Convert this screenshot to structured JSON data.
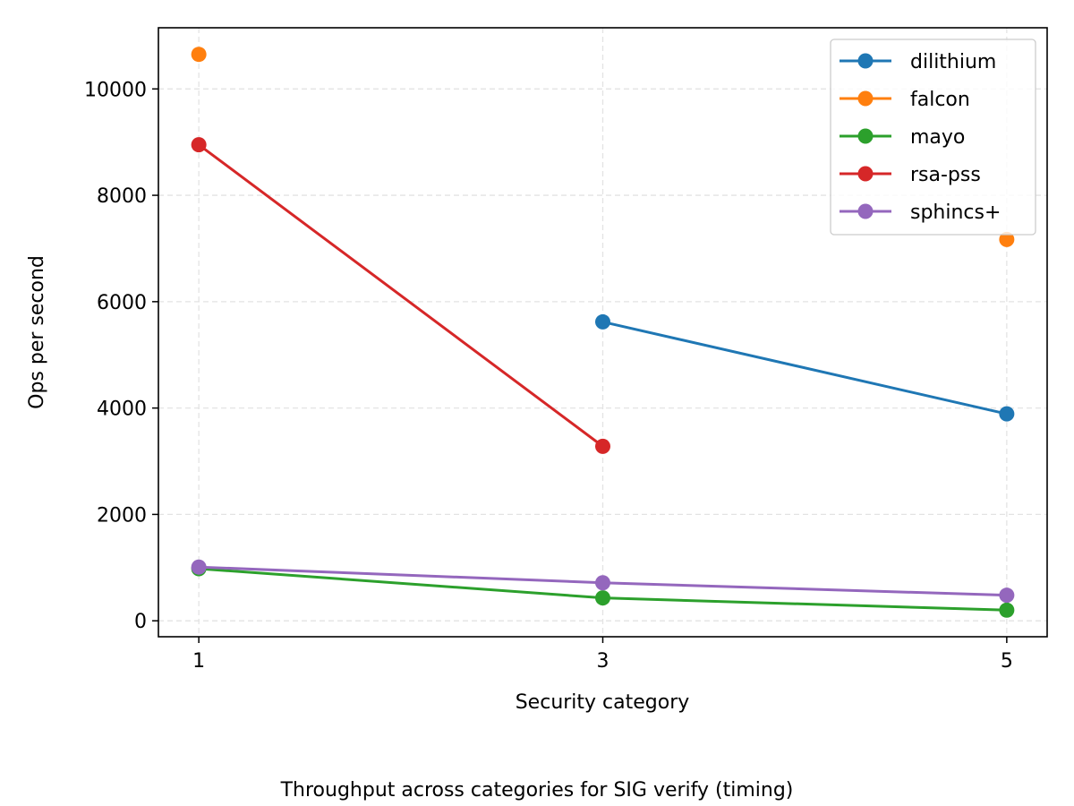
{
  "chart_data": {
    "type": "line",
    "title": "",
    "caption": "Throughput across categories for SIG verify (timing)",
    "xlabel": "Security category",
    "ylabel": "Ops per second",
    "x": [
      1,
      3,
      5
    ],
    "x_ticks": [
      "1",
      "3",
      "5"
    ],
    "y_ticks": [
      "0",
      "2000",
      "4000",
      "6000",
      "8000",
      "10000"
    ],
    "xlim": [
      0.8,
      5.2
    ],
    "ylim": [
      -300,
      11150
    ],
    "grid": true,
    "legend_position": "top-right",
    "series": [
      {
        "name": "dilithium",
        "color": "#1f77b4",
        "values": [
          null,
          5620,
          3890
        ]
      },
      {
        "name": "falcon",
        "color": "#ff7f0e",
        "values": [
          10650,
          null,
          7170
        ]
      },
      {
        "name": "mayo",
        "color": "#2ca02c",
        "values": [
          980,
          430,
          200
        ]
      },
      {
        "name": "rsa-pss",
        "color": "#d62728",
        "values": [
          8950,
          3280,
          null
        ]
      },
      {
        "name": "sphincs+",
        "color": "#9467bd",
        "values": [
          1010,
          715,
          480
        ]
      }
    ]
  }
}
